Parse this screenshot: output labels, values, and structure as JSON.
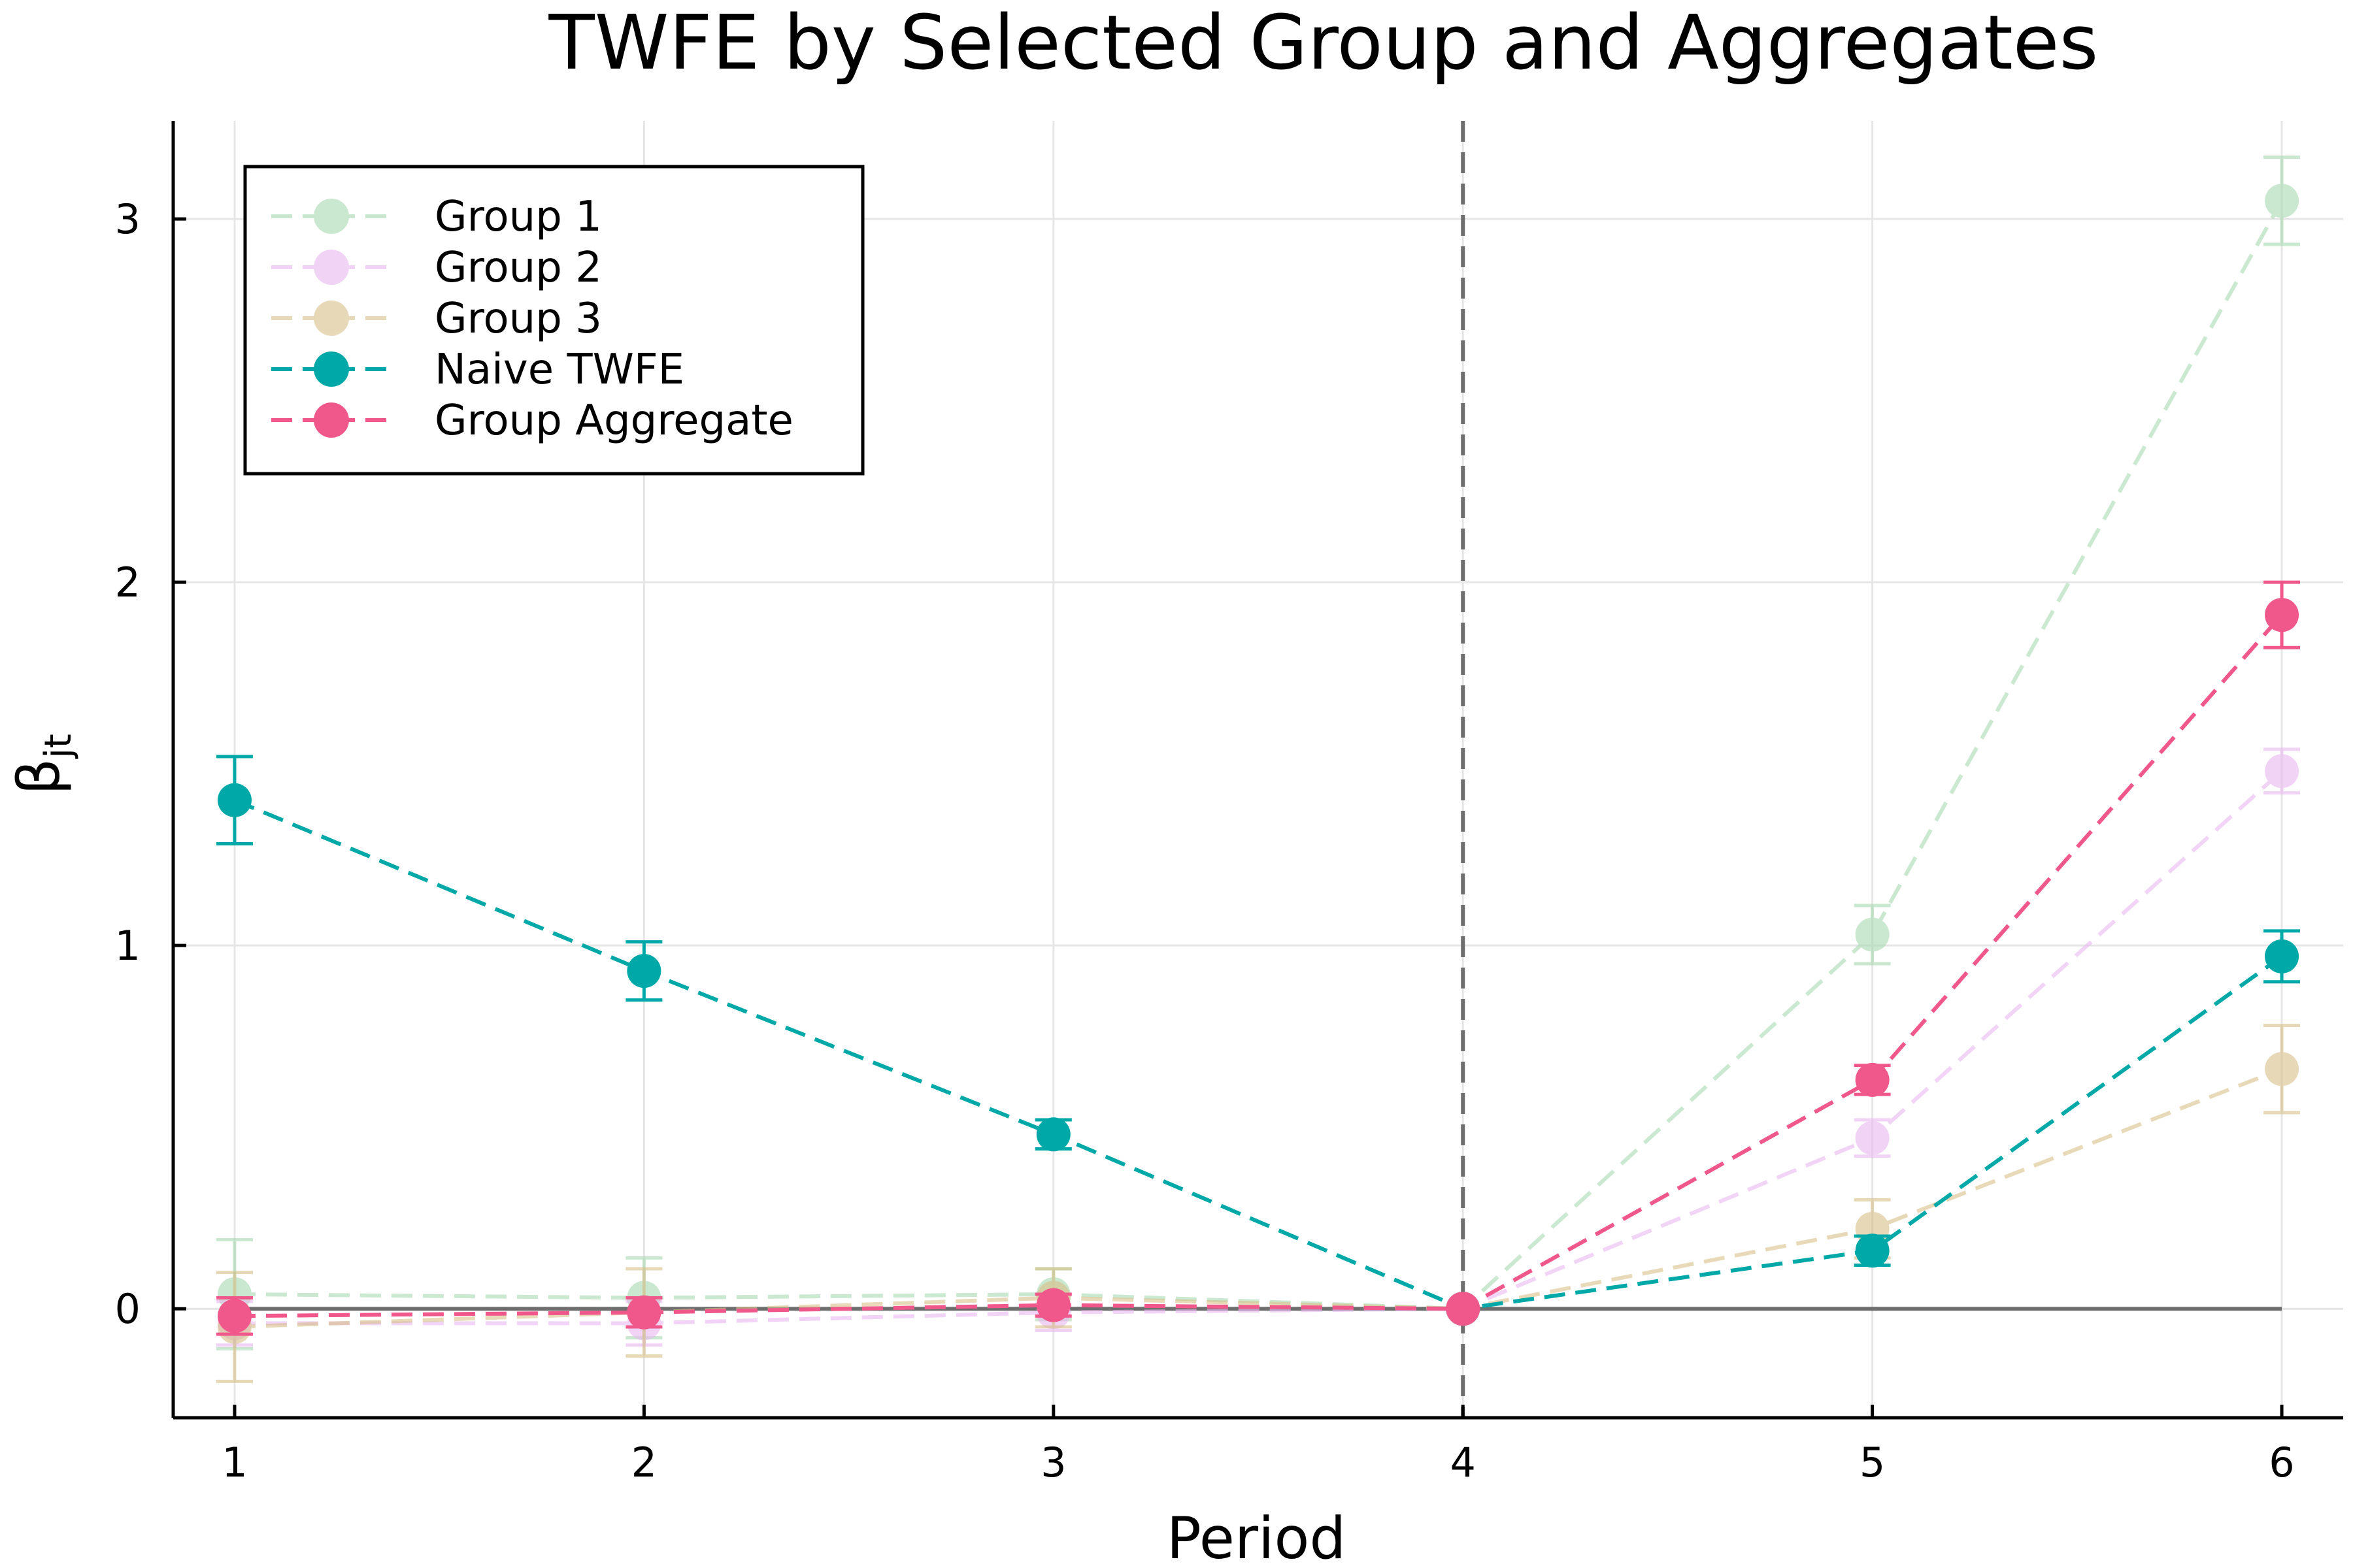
{
  "chart_data": {
    "type": "line",
    "title": "TWFE by Selected Group and Aggregates",
    "xlabel": "Period",
    "ylabel_main": "β",
    "ylabel_sub": "jt",
    "xlim": [
      0.85,
      6.15
    ],
    "ylim": [
      -0.3,
      3.27
    ],
    "x_ticks": [
      1,
      2,
      3,
      4,
      5,
      6
    ],
    "y_ticks": [
      0,
      1,
      2,
      3
    ],
    "grid": true,
    "legend_position": "top-left",
    "vline_x": 4,
    "hline_y": 0,
    "hline_xrange": [
      1,
      6
    ],
    "x": [
      1,
      2,
      3,
      4,
      5,
      6
    ],
    "series": [
      {
        "name": "Group 1",
        "color": "#a8d8b0",
        "alpha": 0.6,
        "values": [
          0.04,
          0.03,
          0.04,
          0.0,
          1.03,
          3.05
        ],
        "err": [
          0.15,
          0.11,
          0.07,
          0.0,
          0.08,
          0.12
        ]
      },
      {
        "name": "Group 2",
        "color": "#e8b8f0",
        "alpha": 0.6,
        "values": [
          -0.04,
          -0.04,
          -0.01,
          0.0,
          0.47,
          1.48
        ],
        "err": [
          0.06,
          0.06,
          0.05,
          0.0,
          0.05,
          0.06
        ]
      },
      {
        "name": "Group 3",
        "color": "#d8c088",
        "alpha": 0.6,
        "values": [
          -0.05,
          -0.01,
          0.03,
          0.0,
          0.22,
          0.66
        ],
        "err": [
          0.15,
          0.12,
          0.08,
          0.0,
          0.08,
          0.12
        ]
      },
      {
        "name": "Naive TWFE",
        "color": "#00a8a8",
        "alpha": 1.0,
        "values": [
          1.4,
          0.93,
          0.48,
          0.0,
          0.16,
          0.97
        ],
        "err": [
          0.12,
          0.08,
          0.04,
          0.0,
          0.04,
          0.07
        ]
      },
      {
        "name": "Group Aggregate",
        "color": "#f0588c",
        "alpha": 1.0,
        "values": [
          -0.02,
          -0.01,
          0.01,
          0.0,
          0.63,
          1.91
        ],
        "err": [
          0.05,
          0.04,
          0.03,
          0.0,
          0.04,
          0.09
        ]
      }
    ]
  }
}
